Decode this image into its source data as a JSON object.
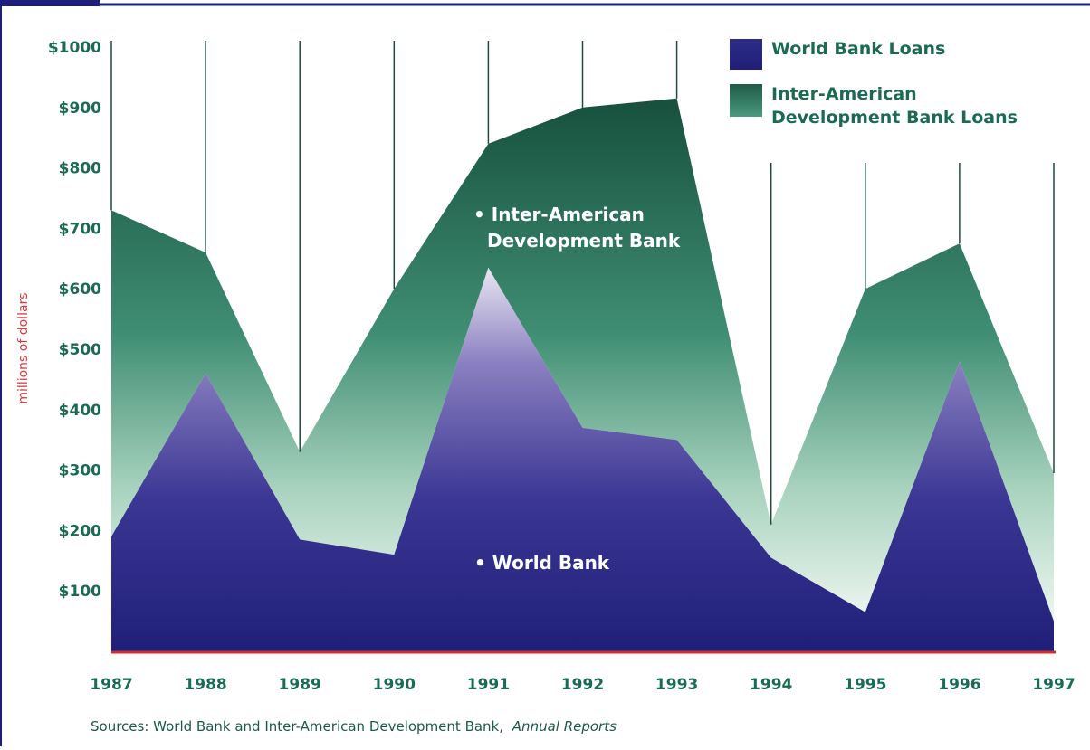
{
  "chart_data": {
    "type": "area",
    "stacked": true,
    "x": [
      "1987",
      "1988",
      "1989",
      "1990",
      "1991",
      "1992",
      "1993",
      "1994",
      "1995",
      "1996",
      "1997"
    ],
    "series": [
      {
        "name": "World Bank Loans",
        "values": [
          190,
          460,
          185,
          160,
          635,
          370,
          350,
          155,
          65,
          480,
          50
        ],
        "color": "#23247e"
      },
      {
        "name": "Inter-American Development Bank Loans",
        "values": [
          540,
          200,
          145,
          440,
          205,
          530,
          565,
          55,
          535,
          195,
          245
        ],
        "color": "#1e5a45"
      }
    ],
    "ylabel": "millions of dollars",
    "yticks": [
      "$100",
      "$200",
      "$300",
      "$400",
      "$500",
      "$600",
      "$700",
      "$800",
      "$900",
      "$1000"
    ],
    "ylim": [
      0,
      1000
    ],
    "legend_position": "top-right",
    "annotations": [
      "• Inter-American",
      "Development Bank",
      "• World Bank"
    ],
    "source_prefix": "Sources: World Bank and Inter-American Development Bank,",
    "source_italic": "Annual Reports",
    "grid": false
  }
}
